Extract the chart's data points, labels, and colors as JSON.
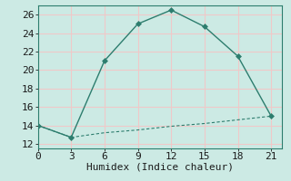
{
  "xlabel": "Humidex (Indice chaleur)",
  "line1_x": [
    0,
    3,
    6,
    9,
    12,
    15,
    18,
    21
  ],
  "line1_y": [
    14,
    12.7,
    21,
    25,
    26.5,
    24.7,
    21.5,
    15
  ],
  "line2_x": [
    0,
    3,
    6,
    9,
    12,
    15,
    18,
    21
  ],
  "line2_y": [
    14,
    12.7,
    13.2,
    13.5,
    13.9,
    14.2,
    14.6,
    15
  ],
  "line_color": "#2d7d6e",
  "bg_color": "#cceae4",
  "grid_color": "#f0c8c8",
  "xlim": [
    0,
    22
  ],
  "ylim": [
    11.5,
    27
  ],
  "xticks": [
    0,
    3,
    6,
    9,
    12,
    15,
    18,
    21
  ],
  "yticks": [
    12,
    14,
    16,
    18,
    20,
    22,
    24,
    26
  ],
  "label_fontsize": 8,
  "tick_fontsize": 8
}
